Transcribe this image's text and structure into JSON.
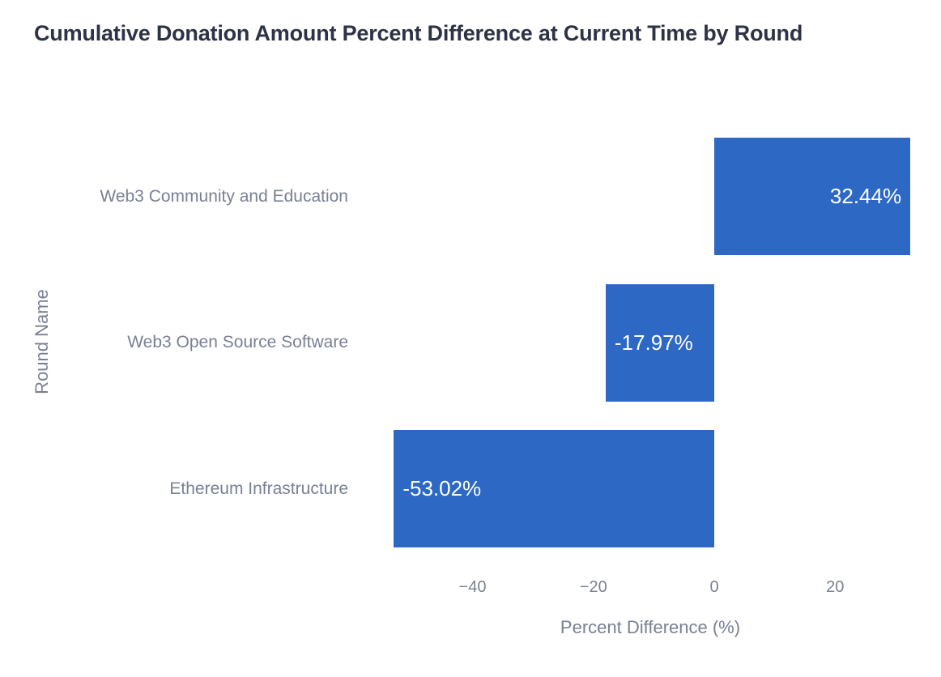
{
  "title": "Cumulative Donation Amount Percent Difference at Current Time by Round",
  "chart_data": {
    "type": "bar",
    "orientation": "horizontal",
    "title": "Cumulative Donation Amount Percent Difference at Current Time by Round",
    "categories": [
      "Web3 Community and Education",
      "Web3 Open Source Software",
      "Ethereum Infrastructure"
    ],
    "values": [
      32.44,
      -17.97,
      -53.02
    ],
    "value_labels": [
      "32.44%",
      "-17.97%",
      "-53.02%"
    ],
    "xlabel": "Percent Difference (%)",
    "ylabel": "Round Name",
    "x_ticks": [
      -40,
      -20,
      0,
      20
    ],
    "x_tick_labels": [
      "−40",
      "−20",
      "0",
      "20"
    ],
    "xlim": [
      -57.1,
      33.3
    ],
    "grid": false,
    "legend": false,
    "bar_color": "#2d68c4"
  },
  "colors": {
    "bar": "#2d68c4",
    "title_text": "#2e3245",
    "axis_text": "#7a8094",
    "value_text": "#ffffff",
    "background": "#ffffff"
  }
}
